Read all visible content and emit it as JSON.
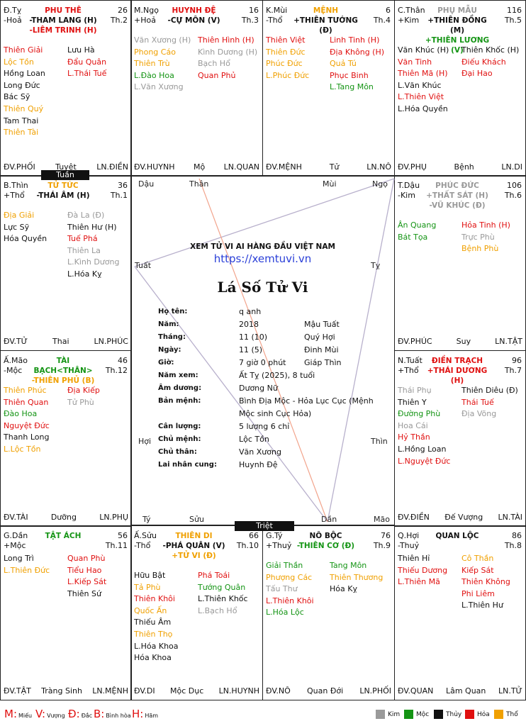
{
  "site": "XEM TỬ VI AI HÀNG ĐẦU VIỆT NAM",
  "url": "https://xemtuvi.vn",
  "title": "Lá Số Tử Vi",
  "info": [
    {
      "label": "Họ tên:",
      "v1": "q anh",
      "v2": ""
    },
    {
      "label": "Năm:",
      "v1": "2018",
      "v2": "Mậu Tuất"
    },
    {
      "label": "Tháng:",
      "v1": "11 (10)",
      "v2": "Quý Hợi"
    },
    {
      "label": "Ngày:",
      "v1": "11 (5)",
      "v2": "Đinh Mùi"
    },
    {
      "label": "Giờ:",
      "v1": "7 giờ 0 phút",
      "v2": "Giáp Thìn"
    },
    {
      "label": "Năm xem:",
      "v1": "Ất Tỵ (2025), 8 tuổi",
      "v2": ""
    },
    {
      "label": "Âm dương:",
      "v1": "Dương Nữ",
      "v2": ""
    },
    {
      "label": "Bản mệnh:",
      "v1": "Bình Địa Mộc - Hỏa Lục Cục (Mệnh",
      "v2": ""
    },
    {
      "label": "",
      "v1": "Mộc sinh Cục Hỏa)",
      "v2": ""
    },
    {
      "label": "Cân lượng:",
      "v1": "5 lượng 6 chỉ",
      "v2": ""
    },
    {
      "label": "Chủ mệnh:",
      "v1": "Lộc Tồn",
      "v2": ""
    },
    {
      "label": "Chủ thân:",
      "v1": "Văn Xương",
      "v2": ""
    },
    {
      "label": "Lai nhân cung:",
      "v1": "Huynh Đệ",
      "v2": ""
    }
  ],
  "branches": {
    "dau": "Dậu",
    "than": "Thân",
    "mui": "Mùi",
    "ngo": "Ngọ",
    "tuat": "Tuất",
    "ty_r": "Tỵ",
    "hoi": "Hợi",
    "thin": "Thìn",
    "ty_b": "Tý",
    "suu": "Sửu",
    "dan": "Dần",
    "mao": "Mão"
  },
  "tags": {
    "tuan": "Tuần",
    "triet": "Triệt"
  },
  "palaces": [
    {
      "id": "ty",
      "can": "Đ.Tỵ",
      "elem": "-Hoả",
      "house": "PHU THÊ",
      "house_color": "c-red",
      "num": "26",
      "th": "Th.2",
      "main": [
        {
          "t": "-THAM LANG (H)",
          "c": "c-blk"
        },
        {
          "t": "-LIÊM TRINH (H)",
          "c": "c-red"
        }
      ],
      "left": [
        {
          "t": "Thiên Giải",
          "c": "c-red"
        },
        {
          "t": "Lộc Tồn",
          "c": "c-org"
        },
        {
          "t": "Hồng Loan",
          "c": "c-blk"
        },
        {
          "t": "Long Đức",
          "c": "c-blk"
        },
        {
          "t": "Bác Sỹ",
          "c": "c-blk"
        },
        {
          "t": "Thiên Quý",
          "c": "c-org"
        },
        {
          "t": "Tam Thai",
          "c": "c-blk"
        },
        {
          "t": "Thiên Tài",
          "c": "c-org"
        }
      ],
      "right": [
        {
          "t": "Lưu Hà",
          "c": "c-blk"
        },
        {
          "t": "Đẩu Quân",
          "c": "c-red"
        },
        {
          "t": "L.Thái Tuế",
          "c": "c-red"
        }
      ],
      "foot": [
        "ĐV.PHỐI",
        "Tuyệt",
        "LN.ĐIỀN"
      ]
    },
    {
      "id": "ngo",
      "can": "M.Ngọ",
      "elem": "+Hoả",
      "house": "HUYNH ĐỆ",
      "house_color": "c-red",
      "num": "16",
      "th": "Th.3",
      "main": [
        {
          "t": "-CỰ MÔN (V)",
          "c": "c-blk"
        }
      ],
      "left": [
        {
          "t": "Văn Xương (H)",
          "c": "c-gry"
        },
        {
          "t": "Phong Cáo",
          "c": "c-org"
        },
        {
          "t": "Thiên Trù",
          "c": "c-org"
        },
        {
          "t": "L.Đào Hoa",
          "c": "c-grn"
        },
        {
          "t": "L.Văn Xương",
          "c": "c-gry"
        }
      ],
      "right": [
        {
          "t": "Thiên Hình (H)",
          "c": "c-red"
        },
        {
          "t": "Kình Dương (H)",
          "c": "c-gry"
        },
        {
          "t": "Bạch Hổ",
          "c": "c-gry"
        },
        {
          "t": "Quan Phủ",
          "c": "c-red"
        }
      ],
      "foot": [
        "ĐV.HUYNH",
        "Mộ",
        "LN.QUAN"
      ]
    },
    {
      "id": "mui",
      "can": "K.Mùi",
      "elem": "-Thổ",
      "house": "MỆNH",
      "house_color": "c-org",
      "num": "6",
      "th": "Th.4",
      "main": [
        {
          "t": "+THIÊN TƯỚNG (Đ)",
          "c": "c-blk"
        }
      ],
      "left": [
        {
          "t": "Thiên Việt",
          "c": "c-red"
        },
        {
          "t": "Thiên Đức",
          "c": "c-org"
        },
        {
          "t": "Phúc Đức",
          "c": "c-org"
        },
        {
          "t": "L.Phúc Đức",
          "c": "c-org"
        }
      ],
      "right": [
        {
          "t": "Linh Tinh (H)",
          "c": "c-red"
        },
        {
          "t": "Địa Không (H)",
          "c": "c-red"
        },
        {
          "t": "Quả Tú",
          "c": "c-org"
        },
        {
          "t": "Phục Binh",
          "c": "c-red"
        },
        {
          "t": "L.Tang Môn",
          "c": "c-grn"
        }
      ],
      "foot": [
        "ĐV.MỆNH",
        "Tử",
        "LN.NÔ"
      ]
    },
    {
      "id": "than",
      "can": "C.Thân",
      "elem": "+Kim",
      "house": "PHỤ MẪU",
      "house_color": "c-gry",
      "num": "116",
      "th": "Th.5",
      "main": [
        {
          "t": "+THIÊN ĐỒNG (M)",
          "c": "c-blk"
        },
        {
          "t": "+THIÊN LƯƠNG (V)",
          "c": "c-grn"
        }
      ],
      "left": [
        {
          "t": "Văn Khúc (H)",
          "c": "c-blk"
        },
        {
          "t": "Văn Tinh",
          "c": "c-red"
        },
        {
          "t": "Thiên Mã (H)",
          "c": "c-red"
        },
        {
          "t": "L.Văn Khúc",
          "c": "c-blk"
        },
        {
          "t": "L.Thiên Việt",
          "c": "c-red"
        },
        {
          "t": "L.Hóa Quyền",
          "c": "c-blk"
        }
      ],
      "right": [
        {
          "t": "Thiên Khốc (H)",
          "c": "c-blk"
        },
        {
          "t": "Điếu Khách",
          "c": "c-red"
        },
        {
          "t": "Đại Hao",
          "c": "c-red"
        }
      ],
      "foot": [
        "ĐV.PHỤ",
        "Bệnh",
        "LN.DI"
      ]
    },
    {
      "id": "thin",
      "can": "B.Thìn",
      "elem": "+Thổ",
      "house": "TỬ TỨC",
      "house_color": "c-org",
      "num": "36",
      "th": "Th.1",
      "main": [
        {
          "t": "-THÁI ÂM (H)",
          "c": "c-blk"
        }
      ],
      "left": [
        {
          "t": "Địa Giải",
          "c": "c-org"
        },
        {
          "t": "Lực Sỹ",
          "c": "c-blk"
        },
        {
          "t": "Hóa Quyền",
          "c": "c-blk"
        }
      ],
      "right": [
        {
          "t": "Đà La (Đ)",
          "c": "c-gry"
        },
        {
          "t": "Thiên Hư (H)",
          "c": "c-blk"
        },
        {
          "t": "Tuế Phá",
          "c": "c-red"
        },
        {
          "t": "Thiên La",
          "c": "c-gry"
        },
        {
          "t": "L.Kình Dương",
          "c": "c-gry"
        },
        {
          "t": "L.Hóa Kỵ",
          "c": "c-blk"
        }
      ],
      "foot": [
        "ĐV.TỬ",
        "Thai",
        "LN.PHÚC"
      ]
    },
    {
      "id": "dau",
      "can": "T.Dậu",
      "elem": "-Kim",
      "house": "PHÚC ĐỨC",
      "house_color": "c-gry",
      "num": "106",
      "th": "Th.6",
      "main": [
        {
          "t": "+THẤT SÁT (H)",
          "c": "c-gry"
        },
        {
          "t": "-VŨ KHÚC (Đ)",
          "c": "c-gry"
        }
      ],
      "left": [
        {
          "t": "Ân Quang",
          "c": "c-grn"
        },
        {
          "t": "Bát Tọa",
          "c": "c-grn"
        }
      ],
      "right": [
        {
          "t": "Hỏa Tinh (H)",
          "c": "c-red"
        },
        {
          "t": "Trực Phù",
          "c": "c-gry"
        },
        {
          "t": "Bệnh Phù",
          "c": "c-org"
        }
      ],
      "foot": [
        "ĐV.PHÚC",
        "Suy",
        "LN.TẬT"
      ]
    },
    {
      "id": "mao",
      "can": "Ấ.Mão",
      "elem": "-Mộc",
      "house": "TÀI BẠCH<THÂN>",
      "house_color": "c-grn",
      "num": "46",
      "th": "Th.12",
      "main": [
        {
          "t": "-THIÊN PHỦ (B)",
          "c": "c-org"
        }
      ],
      "left": [
        {
          "t": "Thiên Phúc",
          "c": "c-org"
        },
        {
          "t": "Thiên Quan",
          "c": "c-red"
        },
        {
          "t": "Đào Hoa",
          "c": "c-grn"
        },
        {
          "t": "Nguyệt Đức",
          "c": "c-red"
        },
        {
          "t": "Thanh Long",
          "c": "c-blk"
        },
        {
          "t": "L.Lộc Tồn",
          "c": "c-org"
        }
      ],
      "right": [
        {
          "t": "Địa Kiếp",
          "c": "c-red"
        },
        {
          "t": "Tử Phù",
          "c": "c-gry"
        }
      ],
      "foot": [
        "ĐV.TÀI",
        "Dưỡng",
        "LN.PHỤ"
      ]
    },
    {
      "id": "tuat",
      "can": "N.Tuất",
      "elem": "+Thổ",
      "house": "ĐIỀN TRẠCH",
      "house_color": "c-red",
      "num": "96",
      "th": "Th.7",
      "main": [
        {
          "t": "+THÁI DƯƠNG (H)",
          "c": "c-red"
        }
      ],
      "left": [
        {
          "t": "Thái Phụ",
          "c": "c-gry"
        },
        {
          "t": "Thiên Y",
          "c": "c-blk"
        },
        {
          "t": "Đường Phù",
          "c": "c-grn"
        },
        {
          "t": "Hoa Cái",
          "c": "c-gry"
        },
        {
          "t": "Hỷ Thần",
          "c": "c-red"
        },
        {
          "t": "L.Hồng Loan",
          "c": "c-blk"
        },
        {
          "t": "L.Nguyệt Đức",
          "c": "c-red"
        }
      ],
      "right": [
        {
          "t": "Thiên Diêu (Đ)",
          "c": "c-blk"
        },
        {
          "t": "Thái Tuế",
          "c": "c-red"
        },
        {
          "t": "Địa Võng",
          "c": "c-gry"
        }
      ],
      "foot": [
        "ĐV.ĐIỀN",
        "Đế Vượng",
        "LN.TÀI"
      ]
    },
    {
      "id": "dan",
      "can": "G.Dần",
      "elem": "+Mộc",
      "house": "TẬT ÁCH",
      "house_color": "c-grn",
      "num": "56",
      "th": "Th.11",
      "main": [],
      "left": [
        {
          "t": "Long Trì",
          "c": "c-blk"
        },
        {
          "t": "L.Thiên Đức",
          "c": "c-org"
        }
      ],
      "right": [
        {
          "t": "Quan Phù",
          "c": "c-red"
        },
        {
          "t": "Tiểu Hao",
          "c": "c-red"
        },
        {
          "t": "L.Kiếp Sát",
          "c": "c-red"
        },
        {
          "t": "Thiên Sứ",
          "c": "c-blk"
        }
      ],
      "foot": [
        "ĐV.TẬT",
        "Tràng Sinh",
        "LN.MỆNH"
      ]
    },
    {
      "id": "suu",
      "can": "Ấ.Sửu",
      "elem": "-Thổ",
      "house": "THIÊN DI",
      "house_color": "c-org",
      "num": "66",
      "th": "Th.10",
      "main": [
        {
          "t": "-PHÁ QUÂN (V)",
          "c": "c-blk"
        },
        {
          "t": "+TỬ VI (Đ)",
          "c": "c-org"
        }
      ],
      "left": [
        {
          "t": "Hữu Bật",
          "c": "c-blk"
        },
        {
          "t": "Tả Phù",
          "c": "c-org"
        },
        {
          "t": "Thiên Khôi",
          "c": "c-red"
        },
        {
          "t": "Quốc Ấn",
          "c": "c-org"
        },
        {
          "t": "Thiếu Âm",
          "c": "c-blk"
        },
        {
          "t": "Thiên Thọ",
          "c": "c-org"
        },
        {
          "t": "L.Hóa Khoa",
          "c": "c-blk"
        },
        {
          "t": "Hóa Khoa",
          "c": "c-blk"
        }
      ],
      "right": [
        {
          "t": "Phá Toái",
          "c": "c-red"
        },
        {
          "t": "Tướng Quân",
          "c": "c-grn"
        },
        {
          "t": "L.Thiên Khốc",
          "c": "c-blk"
        },
        {
          "t": "L.Bạch Hổ",
          "c": "c-gry"
        }
      ],
      "foot": [
        "ĐV.DI",
        "Mộc Dục",
        "LN.HUYNH"
      ]
    },
    {
      "id": "ti",
      "can": "G.Tý",
      "elem": "+Thuỷ",
      "house": "NÔ BỘC",
      "house_color": "c-blk",
      "num": "76",
      "th": "Th.9",
      "main": [
        {
          "t": "-THIÊN CƠ (Đ)",
          "c": "c-grn"
        }
      ],
      "left": [
        {
          "t": "Giải Thần",
          "c": "c-grn"
        },
        {
          "t": "Phượng Các",
          "c": "c-org"
        },
        {
          "t": "Tấu Thư",
          "c": "c-gry"
        },
        {
          "t": "L.Thiên Khôi",
          "c": "c-red"
        },
        {
          "t": "L.Hóa Lộc",
          "c": "c-grn"
        }
      ],
      "right": [
        {
          "t": "Tang Môn",
          "c": "c-grn"
        },
        {
          "t": "Thiên Thương",
          "c": "c-org"
        },
        {
          "t": "Hóa Kỵ",
          "c": "c-blk"
        }
      ],
      "foot": [
        "ĐV.NÔ",
        "Quan Đới",
        "LN.PHỐI"
      ]
    },
    {
      "id": "hoi",
      "can": "Q.Hợi",
      "elem": "-Thuỷ",
      "house": "QUAN LỘC",
      "house_color": "c-blk",
      "num": "86",
      "th": "Th.8",
      "main": [],
      "left": [
        {
          "t": "Thiên Hỉ",
          "c": "c-blk"
        },
        {
          "t": "Thiếu Dương",
          "c": "c-red"
        },
        {
          "t": "L.Thiên Mã",
          "c": "c-red"
        }
      ],
      "right": [
        {
          "t": "Cô Thần",
          "c": "c-org"
        },
        {
          "t": "Kiếp Sát",
          "c": "c-red"
        },
        {
          "t": "Thiên Không",
          "c": "c-red"
        },
        {
          "t": "Phi Liêm",
          "c": "c-red"
        },
        {
          "t": "L.Thiên Hư",
          "c": "c-blk"
        }
      ],
      "foot": [
        "ĐV.QUAN",
        "Lâm Quan",
        "LN.TỬ"
      ]
    }
  ],
  "legend": {
    "marks": [
      {
        "k": "M:",
        "v": "Miếu"
      },
      {
        "k": "V:",
        "v": "Vượng"
      },
      {
        "k": "Đ:",
        "v": "Đắc"
      },
      {
        "k": "B:",
        "v": "Bình hòa"
      },
      {
        "k": "H:",
        "v": "Hãm"
      }
    ],
    "elements": [
      {
        "n": "Kim",
        "color": "#9a9a9a"
      },
      {
        "n": "Mộc",
        "color": "#149414"
      },
      {
        "n": "Thủy",
        "color": "#111111"
      },
      {
        "n": "Hỏa",
        "color": "#e01010"
      },
      {
        "n": "Thổ",
        "color": "#f0a000"
      }
    ]
  }
}
